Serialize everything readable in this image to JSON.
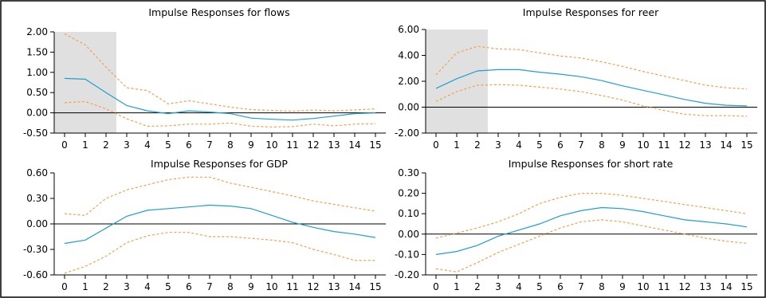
{
  "colors": {
    "response": "#1f9fcf",
    "band": "#f5a04a",
    "shade": "#e0e0e0",
    "frame": "#000000"
  },
  "chart_data": [
    {
      "type": "line",
      "title": "Impulse Responses for flows",
      "x": [
        0,
        1,
        2,
        3,
        4,
        5,
        6,
        7,
        8,
        9,
        10,
        11,
        12,
        13,
        14,
        15
      ],
      "x_tick_labels": [
        "0",
        "1",
        "2",
        "3",
        "4",
        "5",
        "6",
        "7",
        "8",
        "9",
        "10",
        "11",
        "12",
        "13",
        "14",
        "15"
      ],
      "ylim": [
        -0.5,
        2.0
      ],
      "y_tick_values": [
        -0.5,
        0,
        0.5,
        1,
        1.5,
        2
      ],
      "y_tick_labels": [
        "-0.50",
        "0.00",
        "0.50",
        "1.00",
        "1.50",
        "2.00"
      ],
      "shaded_x_range": [
        0,
        2
      ],
      "grid": false,
      "series": [
        {
          "role": "response",
          "values": [
            0.85,
            0.83,
            0.5,
            0.18,
            0.05,
            -0.02,
            0.05,
            0.02,
            -0.02,
            -0.13,
            -0.16,
            -0.18,
            -0.14,
            -0.08,
            -0.02,
            0.0
          ]
        },
        {
          "role": "upper",
          "values": [
            1.95,
            1.68,
            1.13,
            0.62,
            0.55,
            0.22,
            0.3,
            0.22,
            0.14,
            0.08,
            0.06,
            0.04,
            0.07,
            0.05,
            0.07,
            0.1
          ]
        },
        {
          "role": "lower",
          "values": [
            0.25,
            0.28,
            0.1,
            -0.15,
            -0.33,
            -0.32,
            -0.28,
            -0.28,
            -0.25,
            -0.33,
            -0.35,
            -0.34,
            -0.28,
            -0.32,
            -0.28,
            -0.27
          ]
        }
      ]
    },
    {
      "type": "line",
      "title": "Impulse Responses for reer",
      "x": [
        0,
        1,
        2,
        3,
        4,
        5,
        6,
        7,
        8,
        9,
        10,
        11,
        12,
        13,
        14,
        15
      ],
      "x_tick_labels": [
        "0",
        "1",
        "2",
        "3",
        "4",
        "5",
        "6",
        "7",
        "8",
        "9",
        "10",
        "11",
        "12",
        "13",
        "14",
        "15"
      ],
      "ylim": [
        -2.0,
        6.0
      ],
      "y_tick_values": [
        -2,
        0,
        2,
        4,
        6
      ],
      "y_tick_labels": [
        "-2.00",
        "0.00",
        "2.00",
        "4.00",
        "6.00"
      ],
      "shaded_x_range": [
        0,
        2
      ],
      "grid": false,
      "series": [
        {
          "role": "response",
          "values": [
            1.45,
            2.2,
            2.8,
            2.9,
            2.9,
            2.7,
            2.55,
            2.35,
            2.05,
            1.65,
            1.3,
            0.95,
            0.6,
            0.3,
            0.15,
            0.1
          ]
        },
        {
          "role": "upper",
          "values": [
            2.5,
            4.2,
            4.7,
            4.5,
            4.45,
            4.2,
            3.95,
            3.8,
            3.5,
            3.15,
            2.75,
            2.4,
            2.05,
            1.7,
            1.5,
            1.4
          ]
        },
        {
          "role": "lower",
          "values": [
            0.45,
            1.2,
            1.7,
            1.75,
            1.7,
            1.55,
            1.4,
            1.2,
            0.9,
            0.55,
            0.1,
            -0.25,
            -0.55,
            -0.65,
            -0.65,
            -0.7
          ]
        }
      ]
    },
    {
      "type": "line",
      "title": "Impulse Responses for GDP",
      "x": [
        0,
        1,
        2,
        3,
        4,
        5,
        6,
        7,
        8,
        9,
        10,
        11,
        12,
        13,
        14,
        15
      ],
      "x_tick_labels": [
        "0",
        "1",
        "2",
        "3",
        "4",
        "5",
        "6",
        "7",
        "8",
        "9",
        "10",
        "11",
        "12",
        "13",
        "14",
        "15"
      ],
      "ylim": [
        -0.6,
        0.6
      ],
      "y_tick_values": [
        -0.6,
        -0.3,
        0,
        0.3,
        0.6
      ],
      "y_tick_labels": [
        "-0.60",
        "-0.30",
        "0.00",
        "0.30",
        "0.60"
      ],
      "grid": false,
      "series": [
        {
          "role": "response",
          "values": [
            -0.23,
            -0.19,
            -0.05,
            0.09,
            0.16,
            0.18,
            0.2,
            0.22,
            0.21,
            0.18,
            0.1,
            0.02,
            -0.04,
            -0.09,
            -0.12,
            -0.16
          ]
        },
        {
          "role": "upper",
          "values": [
            0.12,
            0.1,
            0.3,
            0.4,
            0.46,
            0.52,
            0.55,
            0.55,
            0.48,
            0.43,
            0.38,
            0.33,
            0.27,
            0.23,
            0.19,
            0.15
          ]
        },
        {
          "role": "lower",
          "values": [
            -0.58,
            -0.5,
            -0.38,
            -0.22,
            -0.14,
            -0.1,
            -0.1,
            -0.15,
            -0.15,
            -0.17,
            -0.19,
            -0.22,
            -0.3,
            -0.36,
            -0.43,
            -0.43
          ]
        }
      ]
    },
    {
      "type": "line",
      "title": "Impulse Responses for short rate",
      "x": [
        0,
        1,
        2,
        3,
        4,
        5,
        6,
        7,
        8,
        9,
        10,
        11,
        12,
        13,
        14,
        15
      ],
      "x_tick_labels": [
        "0",
        "1",
        "2",
        "3",
        "4",
        "5",
        "6",
        "7",
        "8",
        "9",
        "10",
        "11",
        "12",
        "13",
        "14",
        "15"
      ],
      "ylim": [
        -0.2,
        0.3
      ],
      "y_tick_values": [
        -0.2,
        -0.1,
        0,
        0.1,
        0.2,
        0.3
      ],
      "y_tick_labels": [
        "-0.20",
        "-0.10",
        "0.00",
        "0.10",
        "0.20",
        "0.30"
      ],
      "grid": false,
      "series": [
        {
          "role": "response",
          "values": [
            -0.1,
            -0.085,
            -0.055,
            -0.01,
            0.02,
            0.05,
            0.09,
            0.115,
            0.13,
            0.125,
            0.11,
            0.09,
            0.07,
            0.06,
            0.05,
            0.035
          ]
        },
        {
          "role": "upper",
          "values": [
            -0.02,
            0.005,
            0.03,
            0.06,
            0.1,
            0.15,
            0.18,
            0.2,
            0.2,
            0.19,
            0.175,
            0.16,
            0.145,
            0.13,
            0.115,
            0.1
          ]
        },
        {
          "role": "lower",
          "values": [
            -0.17,
            -0.185,
            -0.14,
            -0.09,
            -0.05,
            -0.01,
            0.03,
            0.06,
            0.07,
            0.06,
            0.04,
            0.02,
            0.0,
            -0.02,
            -0.035,
            -0.045
          ]
        }
      ]
    }
  ]
}
